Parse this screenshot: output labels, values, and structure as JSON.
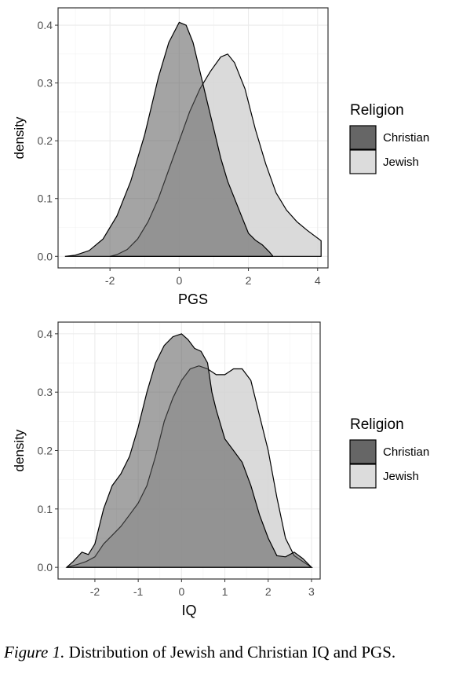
{
  "caption": {
    "label": "Figure 1.",
    "text": "Distribution of Jewish and Christian IQ and PGS."
  },
  "colors": {
    "christian_fill": "#595959",
    "jewish_fill": "#d4d4d4",
    "overlap_fill": "#9b9b9b",
    "grid": "#ebebeb",
    "panel_border": "#333333"
  },
  "chart_data": [
    {
      "type": "area",
      "subtype": "density",
      "xlabel": "PGS",
      "ylabel": "density",
      "xlim": [
        -3.5,
        4.3
      ],
      "ylim": [
        -0.02,
        0.43
      ],
      "xticks": [
        -2,
        0,
        2,
        4
      ],
      "xtick_labels": [
        "-2",
        "0",
        "2",
        "4"
      ],
      "yticks": [
        0.0,
        0.1,
        0.2,
        0.3,
        0.4
      ],
      "ytick_labels": [
        "0.0",
        "0.1",
        "0.2",
        "0.3",
        "0.4"
      ],
      "grid": true,
      "legend": {
        "title": "Religion",
        "position": "right",
        "entries": [
          "Christian",
          "Jewish"
        ]
      },
      "series": [
        {
          "name": "Christian",
          "x": [
            -3.3,
            -3.0,
            -2.6,
            -2.2,
            -1.8,
            -1.4,
            -1.0,
            -0.6,
            -0.3,
            0.0,
            0.2,
            0.4,
            0.6,
            0.8,
            1.0,
            1.2,
            1.4,
            1.6,
            1.8,
            2.0,
            2.2,
            2.4,
            2.6,
            2.7
          ],
          "y": [
            0.0,
            0.002,
            0.01,
            0.03,
            0.07,
            0.13,
            0.21,
            0.31,
            0.37,
            0.405,
            0.4,
            0.37,
            0.32,
            0.27,
            0.22,
            0.17,
            0.13,
            0.1,
            0.07,
            0.04,
            0.028,
            0.02,
            0.008,
            0.001
          ]
        },
        {
          "name": "Jewish",
          "x": [
            -2.0,
            -1.8,
            -1.5,
            -1.2,
            -0.9,
            -0.6,
            -0.3,
            0.0,
            0.3,
            0.6,
            0.9,
            1.2,
            1.4,
            1.6,
            1.9,
            2.2,
            2.5,
            2.8,
            3.1,
            3.4,
            3.7,
            4.1,
            4.1
          ],
          "y": [
            0.0,
            0.003,
            0.012,
            0.03,
            0.06,
            0.1,
            0.15,
            0.2,
            0.25,
            0.29,
            0.32,
            0.345,
            0.35,
            0.335,
            0.29,
            0.22,
            0.16,
            0.11,
            0.08,
            0.06,
            0.045,
            0.027,
            0.0
          ]
        }
      ]
    },
    {
      "type": "area",
      "subtype": "density",
      "xlabel": "IQ",
      "ylabel": "density",
      "xlim": [
        -2.85,
        3.2
      ],
      "ylim": [
        -0.02,
        0.42
      ],
      "xticks": [
        -2,
        -1,
        0,
        1,
        2,
        3
      ],
      "xtick_labels": [
        "-2",
        "-1",
        "0",
        "1",
        "2",
        "3"
      ],
      "yticks": [
        0.0,
        0.1,
        0.2,
        0.3,
        0.4
      ],
      "ytick_labels": [
        "0.0",
        "0.1",
        "0.2",
        "0.3",
        "0.4"
      ],
      "grid": true,
      "legend": {
        "title": "Religion",
        "position": "right",
        "entries": [
          "Christian",
          "Jewish"
        ]
      },
      "series": [
        {
          "name": "Christian",
          "x": [
            -2.65,
            -2.5,
            -2.3,
            -2.15,
            -2.0,
            -1.8,
            -1.6,
            -1.4,
            -1.2,
            -1.0,
            -0.8,
            -0.6,
            -0.4,
            -0.2,
            0.0,
            0.15,
            0.3,
            0.45,
            0.6,
            0.7,
            0.8,
            1.0,
            1.2,
            1.4,
            1.6,
            1.8,
            2.0,
            2.2,
            2.4,
            2.6,
            2.8,
            3.0
          ],
          "y": [
            0.0,
            0.01,
            0.026,
            0.022,
            0.04,
            0.1,
            0.14,
            0.16,
            0.19,
            0.24,
            0.3,
            0.35,
            0.38,
            0.395,
            0.4,
            0.39,
            0.375,
            0.37,
            0.35,
            0.3,
            0.27,
            0.22,
            0.2,
            0.18,
            0.14,
            0.09,
            0.05,
            0.02,
            0.018,
            0.026,
            0.015,
            0.0
          ]
        },
        {
          "name": "Jewish",
          "x": [
            -2.65,
            -2.4,
            -2.2,
            -2.0,
            -1.8,
            -1.6,
            -1.4,
            -1.2,
            -1.0,
            -0.8,
            -0.6,
            -0.4,
            -0.2,
            0.0,
            0.2,
            0.4,
            0.6,
            0.8,
            1.0,
            1.2,
            1.4,
            1.6,
            1.8,
            2.0,
            2.2,
            2.4,
            2.6,
            2.8,
            3.0
          ],
          "y": [
            0.0,
            0.005,
            0.01,
            0.018,
            0.04,
            0.055,
            0.07,
            0.09,
            0.11,
            0.14,
            0.19,
            0.25,
            0.29,
            0.32,
            0.34,
            0.345,
            0.34,
            0.33,
            0.33,
            0.34,
            0.34,
            0.32,
            0.26,
            0.2,
            0.12,
            0.05,
            0.02,
            0.01,
            0.0
          ]
        }
      ]
    }
  ]
}
